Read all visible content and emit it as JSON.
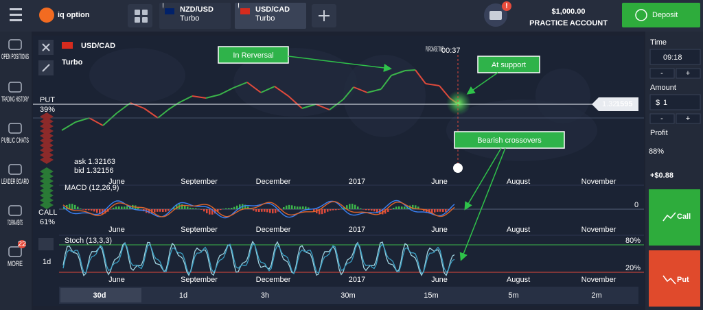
{
  "header": {
    "brand": "iq option",
    "tabs": [
      {
        "pair": "NZD/USD",
        "kind": "Turbo"
      },
      {
        "pair": "USD/CAD",
        "kind": "Turbo"
      }
    ],
    "alert": "!",
    "balance": "$1,000.00",
    "account": "PRACTICE ACCOUNT",
    "deposit": "Deposit"
  },
  "sidebar": {
    "items": [
      "OPEN POSITIONS",
      "TRADING HISTORY",
      "PUBLIC CHATS",
      "LEADER BOARD",
      "TOURNA-MENTS",
      "MORE"
    ],
    "badge": "22"
  },
  "chart": {
    "pair": "USD/CAD",
    "kind": "Turbo",
    "purchase_label": "PURCHASE TIME",
    "countdown": "00:37",
    "put_label": "PUT",
    "put_pct": "39%",
    "call_label": "CALL",
    "call_pct": "61%",
    "ask": "ask 1.32163",
    "bid": "bid 1.32156",
    "price_head": "1.32",
    "price_tail": "1595",
    "macd": "MACD (12,26,9)",
    "macd_zero": "0",
    "stoch": "Stoch (13,3,3)",
    "stoch_high": "80%",
    "stoch_low": "20%",
    "side_period": "1d",
    "axis_labels": [
      "June",
      "September",
      "December",
      "2017",
      "June",
      "August",
      "November"
    ],
    "timeframes": [
      "30d",
      "1d",
      "3h",
      "30m",
      "15m",
      "5m",
      "2m"
    ],
    "annotations": [
      "In Rerversal",
      "At support",
      "Bearish crossovers"
    ]
  },
  "panel": {
    "time_label": "Time",
    "time": "09:18",
    "minus": "-",
    "plus": "+",
    "amount_label": "Amount",
    "currency": "$",
    "amount": "1",
    "profit_label": "Profit",
    "profit_pct": "88%",
    "profit": "+$0.88",
    "call": "Call",
    "put": "Put"
  }
}
